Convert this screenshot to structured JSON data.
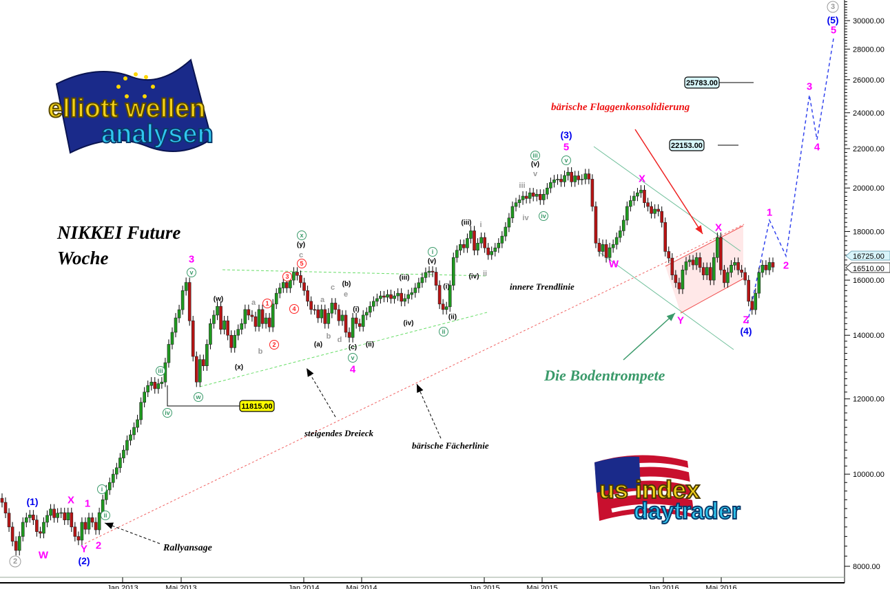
{
  "chart_data": {
    "type": "candlestick",
    "title": "NIKKEI Future",
    "subtitle": "Woche",
    "yscale": "log",
    "ylim": [
      7900,
      32000
    ],
    "grid": false,
    "y_ticks": [
      "8000.00",
      "10000.00",
      "12000.00",
      "14000.00",
      "16000.00",
      "18000.00",
      "20000.00",
      "22000.00",
      "24000.00",
      "26000.00",
      "28000.00",
      "30000.00"
    ],
    "y_tick_values": [
      8000,
      10000,
      12000,
      14000,
      16000,
      18000,
      20000,
      22000,
      24000,
      26000,
      28000,
      30000
    ],
    "x_ticks": [
      "Jan 2013",
      "Mai 2013",
      "Jan 2014",
      "Mai 2014",
      "Jan 2015",
      "Mai 2015",
      "Jan 2016",
      "Mai 2016"
    ],
    "last_price_labels": [
      "16725.00",
      "16510.00"
    ],
    "weekly_close": [
      9340,
      9100,
      8800,
      8500,
      8313,
      8600,
      8900,
      9000,
      9060,
      8950,
      8700,
      8666,
      8900,
      9050,
      9190,
      9000,
      9100,
      9110,
      8950,
      9110,
      8800,
      8600,
      8523,
      8900,
      8750,
      9000,
      8900,
      8739,
      9110,
      9400,
      9626,
      9800,
      10000,
      10156,
      10400,
      10600,
      10853,
      11000,
      11200,
      11410,
      11900,
      12200,
      12396,
      12500,
      12300,
      12450,
      12500,
      13100,
      13695,
      14100,
      14600,
      14894,
      15600,
      15910,
      14500,
      13300,
      12500,
      13200,
      13000,
      13695,
      14400,
      14700,
      15016,
      14200,
      14500,
      14000,
      13584,
      14000,
      14200,
      14400,
      14900,
      14700,
      14645,
      14300,
      14900,
      14400,
      14600,
      14282,
      15100,
      15500,
      15700,
      15910,
      15700,
      16000,
      16313,
      16183,
      15900,
      15600,
      15200,
      14900,
      14894,
      14600,
      14900,
      14400,
      14768,
      15137,
      14900,
      14500,
      14700,
      14100,
      13926,
      14600,
      14400,
      14300,
      14700,
      14800,
      15016,
      15200,
      15300,
      15400,
      15350,
      15450,
      15300,
      15400,
      15500,
      15200,
      15300,
      15450,
      15521,
      15700,
      15900,
      16100,
      16300,
      16350,
      16313,
      15800,
      15100,
      14900,
      15000,
      15800,
      16900,
      17200,
      17444,
      17300,
      17700,
      18030,
      17200,
      17500,
      17743,
      17300,
      17013,
      17150,
      17300,
      17500,
      17800,
      18193,
      18600,
      19126,
      19300,
      19434,
      19610,
      19500,
      19768,
      19600,
      19700,
      19434,
      19700,
      20000,
      20268,
      20400,
      20431,
      20300,
      20616,
      20782,
      20300,
      20600,
      20400,
      20431,
      20700,
      20431,
      19126,
      17500,
      17150,
      17444,
      16900,
      17305,
      17444,
      17743,
      18030,
      18500,
      19126,
      19400,
      19610,
      19768,
      19900,
      19300,
      19126,
      18803,
      19000,
      18900,
      18400,
      17150,
      16877,
      16200,
      15900,
      15660,
      16400,
      16726,
      16800,
      16600,
      16900,
      16500,
      16200,
      16500,
      16000,
      16900,
      17743,
      16400,
      15900,
      16300,
      16592,
      16700,
      16400,
      16300,
      16000,
      15200,
      14894,
      15500,
      16300,
      16592,
      16400,
      16700,
      16510
    ],
    "colors": {
      "up": "#1f9a1f",
      "down": "#b81414",
      "wick": "#000000"
    },
    "price_targets": [
      "11815.00",
      "22153.00",
      "25783.00"
    ],
    "projection": "blue dashed path 1-2-3-4-5 toward wave (5)",
    "annotations": {
      "magenta": [
        "3",
        "4",
        "5",
        "1",
        "2",
        "W",
        "X",
        "Y",
        "W",
        "X",
        "X",
        "Y",
        "Z",
        "1",
        "2",
        "3",
        "4",
        "5"
      ],
      "blue": [
        "(1)",
        "(2)",
        "(3)",
        "(4)",
        "(5)"
      ],
      "gray_circled": [
        "2",
        "3"
      ],
      "green_circled": [
        "i",
        "ii",
        "iii",
        "iv",
        "v",
        "w",
        "x",
        "v",
        "i",
        "ii",
        "iii",
        "v",
        "iv"
      ],
      "black": [
        "(w)",
        "(x)",
        "(y)",
        "(a)",
        "(b)",
        "(i)",
        "(c)",
        "(ii)",
        "(iii)",
        "(iv)",
        "(v)",
        "(i)",
        "(ii)",
        "(iii)",
        "(iv)",
        "(v)"
      ],
      "gray": [
        "a",
        "b",
        "c",
        "a",
        "b",
        "c",
        "e",
        "d",
        "i",
        "ii",
        "iii",
        "v",
        "iv"
      ],
      "red_circled": [
        "1",
        "2",
        "3",
        "4",
        "5"
      ]
    },
    "texts": {
      "flag": "bärische Flaggenkonsolidierung",
      "trumpet": "Die Bodentrompete",
      "inner_trend": "innere Trendlinie",
      "triangle": "steigendes Dreieck",
      "fan": "bärische Fächerlinie",
      "rally": "Rallyansage"
    }
  },
  "logos": {
    "top_left": "elliott wellen analysen",
    "bottom_right": "us index daytrader"
  }
}
